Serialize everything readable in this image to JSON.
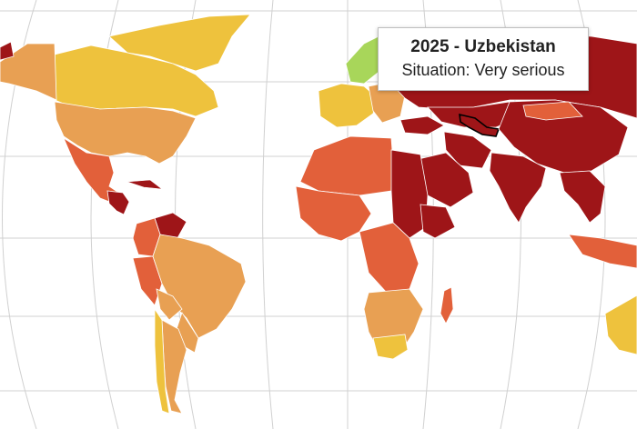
{
  "tooltip": {
    "title": "2025 - Uzbekistan",
    "detail": "Situation: Very serious"
  },
  "colors": {
    "very_serious": "#9e1518",
    "difficult": "#e2603a",
    "problematic": "#e8a053",
    "satisfactory": "#eec23d",
    "good": "#a8d65a",
    "graticule": "#d0d0d0",
    "ocean": "#ffffff"
  },
  "legend_levels": [
    "very_serious",
    "difficult",
    "problematic",
    "satisfactory",
    "good"
  ]
}
